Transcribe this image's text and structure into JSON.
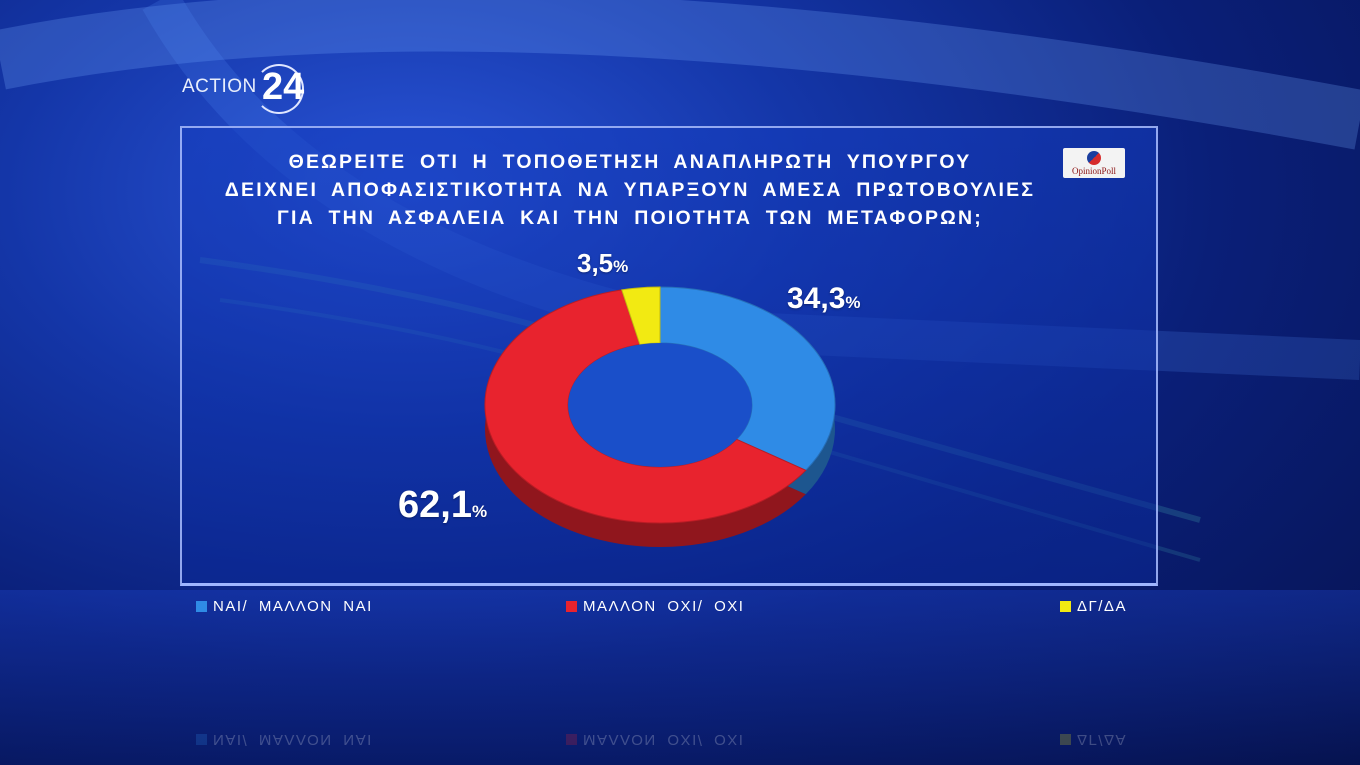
{
  "brand": {
    "name": "ACTION",
    "number": "24"
  },
  "poll_badge": {
    "text": "OpinionPoll"
  },
  "question_lines": [
    "ΘΕΩΡΕΙΤΕ ΟΤΙ Η ΤΟΠΟΘΕΤΗΣΗ ΑΝΑΠΛΗΡΩΤΗ ΥΠΟΥΡΓΟΥ",
    "ΔΕΙΧΝΕΙ ΑΠΟΦΑΣΙΣΤΙΚΟΤΗΤΑ ΝΑ ΥΠΑΡΞΟΥΝ ΑΜΕΣΑ ΠΡΩΤΟΒΟΥΛΙΕΣ",
    "ΓΙΑ ΤΗΝ ΑΣΦΑΛΕΙΑ ΚΑΙ ΤΗΝ ΠΟΙΟΤΗΤΑ ΤΩΝ ΜΕΤΑΦΟΡΩΝ;"
  ],
  "chart_data": {
    "type": "pie",
    "categories": [
      "ΝΑΙ/ ΜΑΛΛΟΝ ΝΑΙ",
      "ΜΑΛΛΟΝ ΟΧΙ/ ΟΧΙ",
      "ΔΓ/ΔΑ"
    ],
    "values": [
      34.3,
      62.1,
      3.5
    ],
    "value_labels": [
      "34,3",
      "62,1",
      "3,5"
    ],
    "unit": "%",
    "colors": [
      "#2f8be6",
      "#e8232e",
      "#f2ea12"
    ],
    "title": "ΘΕΩΡΕΙΤΕ ΟΤΙ Η ΤΟΠΟΘΕΤΗΣΗ ΑΝΑΠΛΗΡΩΤΗ ΥΠΟΥΡΓΟΥ ΔΕΙΧΝΕΙ ΑΠΟΦΑΣΙΣΤΙΚΟΤΗΤΑ ΝΑ ΥΠΑΡΞΟΥΝ ΑΜΕΣΑ ΠΡΩΤΟΒΟΥΛΙΕΣ ΓΙΑ ΤΗΝ ΑΣΦΑΛΕΙΑ ΚΑΙ ΤΗΝ ΠΟΙΟΤΗΤΑ ΤΩΝ ΜΕΤΑΦΟΡΩΝ;",
    "style": "donut",
    "legend_position": "bottom"
  }
}
